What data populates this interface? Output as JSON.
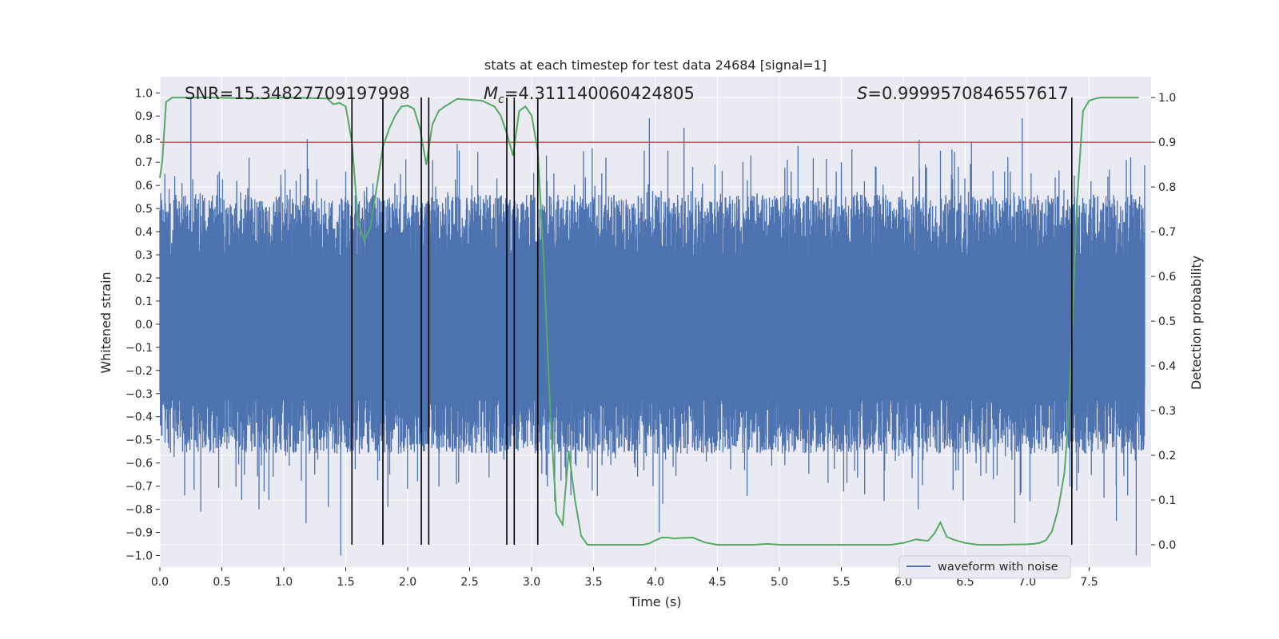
{
  "colors": {
    "waveform": "#4c72b0",
    "probability": "#55a868",
    "threshold": "#c44e52",
    "markers": "#000000",
    "background": "#eaeaf2",
    "grid": "#ffffff"
  },
  "chart_data": {
    "type": "line",
    "title": "stats at each timestep for test data 24684 [signal=1]",
    "xlabel": "Time (s)",
    "ylabel_left": "Whitened strain",
    "ylabel_right": "Detection probability",
    "xlim": [
      0.0,
      8.0
    ],
    "ylim_left": [
      -1.05,
      1.07
    ],
    "ylim_right": [
      -0.05,
      1.0467
    ],
    "x_ticks": [
      0.0,
      0.5,
      1.0,
      1.5,
      2.0,
      2.5,
      3.0,
      3.5,
      4.0,
      4.5,
      5.0,
      5.5,
      6.0,
      6.5,
      7.0,
      7.5
    ],
    "x_tick_labels": [
      "0.0",
      "0.5",
      "1.0",
      "1.5",
      "2.0",
      "2.5",
      "3.0",
      "3.5",
      "4.0",
      "4.5",
      "5.0",
      "5.5",
      "6.0",
      "6.5",
      "7.0",
      "7.5"
    ],
    "y_left_ticks": [
      -1.0,
      -0.9,
      -0.8,
      -0.7,
      -0.6,
      -0.5,
      -0.4,
      -0.3,
      -0.2,
      -0.1,
      0.0,
      0.1,
      0.2,
      0.3,
      0.4,
      0.5,
      0.6,
      0.7,
      0.8,
      0.9,
      1.0
    ],
    "y_left_tick_labels": [
      "−1.0",
      "−0.9",
      "−0.8",
      "−0.7",
      "−0.6",
      "−0.5",
      "−0.4",
      "−0.3",
      "−0.2",
      "−0.1",
      "0.0",
      "0.1",
      "0.2",
      "0.3",
      "0.4",
      "0.5",
      "0.6",
      "0.7",
      "0.8",
      "0.9",
      "1.0"
    ],
    "y_right_ticks": [
      0.0,
      0.1,
      0.2,
      0.3,
      0.4,
      0.5,
      0.6,
      0.7,
      0.8,
      0.9,
      1.0
    ],
    "y_right_tick_labels": [
      "0.0",
      "0.1",
      "0.2",
      "0.3",
      "0.4",
      "0.5",
      "0.6",
      "0.7",
      "0.8",
      "0.9",
      "1.0"
    ],
    "annotations": {
      "snr": "SNR=15.34827709197998",
      "mc_symbol": "M",
      "mc_subscript": "c",
      "mc_value": "=4.311140060424805",
      "s_symbol": "S",
      "s_value": "=0.9999570846557617"
    },
    "threshold": 0.9,
    "marker_times": [
      1.55,
      1.8,
      2.11,
      2.17,
      2.8,
      2.86,
      3.05,
      7.36
    ],
    "legend": {
      "label": "waveform with noise",
      "placement": "lower-right"
    },
    "waveform_series": {
      "name": "waveform with noise",
      "sampling": "dense noisy strain, envelope roughly -0.6 to 0.6 with sparse spikes",
      "peak_max": 0.97,
      "peak_min": -1.0,
      "spikes": [
        [
          0.04,
          0.65
        ],
        [
          0.12,
          0.64
        ],
        [
          0.2,
          -0.74
        ],
        [
          0.25,
          0.98
        ],
        [
          0.33,
          -0.81
        ],
        [
          0.48,
          0.66
        ],
        [
          0.62,
          0.62
        ],
        [
          0.66,
          -0.76
        ],
        [
          0.72,
          0.72
        ],
        [
          0.8,
          -0.8
        ],
        [
          0.88,
          -0.76
        ],
        [
          1.01,
          0.67
        ],
        [
          1.1,
          0.62
        ],
        [
          1.18,
          -0.86
        ],
        [
          1.19,
          0.8
        ],
        [
          1.36,
          -0.79
        ],
        [
          1.46,
          -1.0
        ],
        [
          1.5,
          0.66
        ],
        [
          1.72,
          0.61
        ],
        [
          1.84,
          -0.79
        ],
        [
          2.4,
          0.78
        ],
        [
          2.72,
          0.63
        ],
        [
          3.12,
          0.73
        ],
        [
          3.6,
          0.72
        ],
        [
          3.95,
          0.89
        ],
        [
          3.98,
          -0.7
        ],
        [
          4.03,
          -0.9
        ],
        [
          4.1,
          0.75
        ],
        [
          4.23,
          0.85
        ],
        [
          4.3,
          0.68
        ],
        [
          4.48,
          0.69
        ],
        [
          4.77,
          0.73
        ],
        [
          5.15,
          0.77
        ],
        [
          5.5,
          0.7
        ],
        [
          5.78,
          0.68
        ],
        [
          6.12,
          -0.8
        ],
        [
          6.3,
          0.75
        ],
        [
          6.55,
          0.79
        ],
        [
          6.9,
          -0.86
        ],
        [
          6.96,
          0.89
        ],
        [
          7.25,
          -0.7
        ],
        [
          7.62,
          -0.75
        ],
        [
          7.72,
          -0.85
        ],
        [
          7.8,
          0.71
        ],
        [
          7.88,
          -1.0
        ]
      ]
    },
    "probability_series": {
      "name": "detection probability",
      "x": [
        0.0,
        0.02,
        0.05,
        0.1,
        0.2,
        0.4,
        0.6,
        0.8,
        1.0,
        1.2,
        1.35,
        1.4,
        1.45,
        1.5,
        1.55,
        1.6,
        1.65,
        1.7,
        1.75,
        1.8,
        1.85,
        1.9,
        1.95,
        2.0,
        2.05,
        2.1,
        2.15,
        2.2,
        2.25,
        2.3,
        2.4,
        2.5,
        2.6,
        2.7,
        2.75,
        2.8,
        2.85,
        2.9,
        2.95,
        3.0,
        3.05,
        3.1,
        3.15,
        3.2,
        3.25,
        3.3,
        3.35,
        3.4,
        3.45,
        3.5,
        3.7,
        3.9,
        3.95,
        4.0,
        4.05,
        4.1,
        4.15,
        4.2,
        4.3,
        4.4,
        4.5,
        4.8,
        4.9,
        5.0,
        5.2,
        5.5,
        5.7,
        5.9,
        6.0,
        6.1,
        6.15,
        6.2,
        6.25,
        6.3,
        6.35,
        6.4,
        6.5,
        6.6,
        6.8,
        7.0,
        7.05,
        7.1,
        7.15,
        7.2,
        7.25,
        7.3,
        7.33,
        7.36,
        7.4,
        7.45,
        7.5,
        7.55,
        7.6,
        7.8,
        7.9
      ],
      "y": [
        0.82,
        0.86,
        0.99,
        1.0,
        1.0,
        1.0,
        0.999,
        0.998,
        1.0,
        0.999,
        0.998,
        0.985,
        0.988,
        0.98,
        0.9,
        0.72,
        0.68,
        0.71,
        0.8,
        0.89,
        0.93,
        0.96,
        0.98,
        0.982,
        0.975,
        0.93,
        0.85,
        0.94,
        0.97,
        0.98,
        0.997,
        0.995,
        0.993,
        0.98,
        0.96,
        0.92,
        0.87,
        0.97,
        0.98,
        0.96,
        0.88,
        0.62,
        0.3,
        0.07,
        0.045,
        0.21,
        0.1,
        0.02,
        0.0,
        0.0,
        0.0,
        0.0,
        0.003,
        0.01,
        0.016,
        0.016,
        0.014,
        0.015,
        0.016,
        0.005,
        0.0,
        0.0,
        0.002,
        0.0,
        0.0,
        0.0,
        0.0,
        0.0,
        0.004,
        0.012,
        0.01,
        0.009,
        0.025,
        0.05,
        0.018,
        0.012,
        0.004,
        0.0,
        0.0,
        0.001,
        0.002,
        0.004,
        0.01,
        0.03,
        0.08,
        0.16,
        0.27,
        0.46,
        0.76,
        0.97,
        0.993,
        0.998,
        1.0,
        1.0,
        1.0
      ]
    }
  }
}
